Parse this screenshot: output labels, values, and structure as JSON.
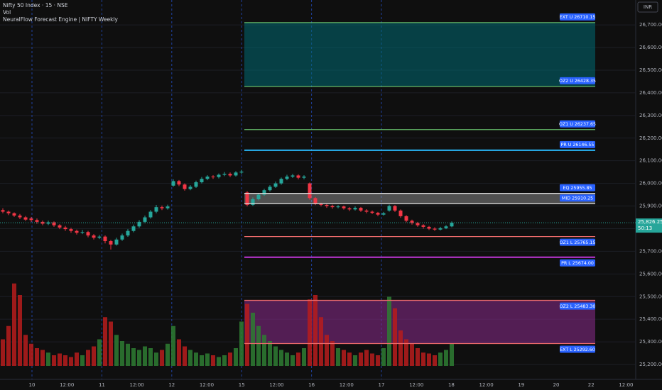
{
  "header": {
    "symbol": "Nifty 50 Index · 15 · NSE",
    "volume": "Vol",
    "indicator": "NeuralFlow Forecast Engine | NIFTY Weekly"
  },
  "currency": "INR",
  "chart_data": {
    "type": "candlestick",
    "up_color": "#26a69a",
    "down_color": "#f23645",
    "volume_up_color": "#2e7d32",
    "volume_down_color": "#b71c1c",
    "ylim": [
      25150,
      26810
    ],
    "yticks": [
      {
        "value": 25200,
        "label": "25,200.00"
      },
      {
        "value": 25300,
        "label": "25,300.00"
      },
      {
        "value": 25400,
        "label": "25,400.00"
      },
      {
        "value": 25500,
        "label": "25,500.00"
      },
      {
        "value": 25600,
        "label": "25,600.00"
      },
      {
        "value": 25700,
        "label": "25,700.00"
      },
      {
        "value": 25800,
        "label": "25,800.00"
      },
      {
        "value": 25900,
        "label": "25,900.00"
      },
      {
        "value": 26000,
        "label": "26,000.00"
      },
      {
        "value": 26100,
        "label": "26,100.00"
      },
      {
        "value": 26200,
        "label": "26,200.00"
      },
      {
        "value": 26300,
        "label": "26,300.00"
      },
      {
        "value": 26400,
        "label": "26,400.00"
      },
      {
        "value": 26500,
        "label": "26,500.00"
      },
      {
        "value": 26600,
        "label": "26,600.00"
      },
      {
        "value": 26700,
        "label": "26,700.00"
      }
    ],
    "x_labels": [
      "10",
      "12:00",
      "11",
      "12:00",
      "12",
      "12:00",
      "15",
      "12:00",
      "16",
      "12:00",
      "17",
      "12:00",
      "18",
      "12:00",
      "19",
      "20",
      "22",
      "12:00"
    ],
    "candles": [
      [
        25882,
        25890,
        25868,
        25875
      ],
      [
        25875,
        25880,
        25860,
        25868
      ],
      [
        25868,
        25872,
        25852,
        25858
      ],
      [
        25858,
        25865,
        25842,
        25850
      ],
      [
        25850,
        25856,
        25834,
        25840
      ],
      [
        25845,
        25852,
        25830,
        25838
      ],
      [
        25838,
        25845,
        25822,
        25830
      ],
      [
        25830,
        25836,
        25815,
        25822
      ],
      [
        25822,
        25835,
        25816,
        25828
      ],
      [
        25828,
        25832,
        25808,
        25815
      ],
      [
        25815,
        25820,
        25798,
        25805
      ],
      [
        25805,
        25812,
        25790,
        25798
      ],
      [
        25798,
        25804,
        25782,
        25790
      ],
      [
        25790,
        25796,
        25774,
        25782
      ],
      [
        25782,
        25794,
        25776,
        25785
      ],
      [
        25785,
        25790,
        25762,
        25770
      ],
      [
        25770,
        25776,
        25752,
        25760
      ],
      [
        25760,
        25772,
        25754,
        25765
      ],
      [
        25765,
        25770,
        25735,
        25745
      ],
      [
        25745,
        25750,
        25708,
        25730
      ],
      [
        25730,
        25760,
        25725,
        25752
      ],
      [
        25752,
        25778,
        25746,
        25770
      ],
      [
        25770,
        25798,
        25764,
        25790
      ],
      [
        25790,
        25818,
        25784,
        25810
      ],
      [
        25810,
        25838,
        25804,
        25830
      ],
      [
        25830,
        25858,
        25824,
        25850
      ],
      [
        25850,
        25882,
        25844,
        25875
      ],
      [
        25875,
        25905,
        25868,
        25895
      ],
      [
        25895,
        25902,
        25882,
        25890
      ],
      [
        25890,
        25906,
        25884,
        25898
      ],
      [
        25990,
        26018,
        25985,
        26010
      ],
      [
        26010,
        26015,
        25988,
        25995
      ],
      [
        25995,
        26000,
        25968,
        25975
      ],
      [
        25975,
        25992,
        25970,
        25985
      ],
      [
        25985,
        26012,
        25980,
        26005
      ],
      [
        26005,
        26028,
        26000,
        26020
      ],
      [
        26020,
        26036,
        26014,
        26030
      ],
      [
        26030,
        26036,
        26020,
        26028
      ],
      [
        26028,
        26044,
        26022,
        26038
      ],
      [
        26038,
        26050,
        26032,
        26042
      ],
      [
        26042,
        26048,
        26028,
        26035
      ],
      [
        26035,
        26054,
        26030,
        26048
      ],
      [
        26048,
        26060,
        26042,
        26052
      ],
      [
        25960,
        25965,
        25898,
        25905
      ],
      [
        25905,
        25938,
        25900,
        25930
      ],
      [
        25930,
        25956,
        25925,
        25950
      ],
      [
        25950,
        25976,
        25945,
        25970
      ],
      [
        25970,
        25992,
        25964,
        25985
      ],
      [
        25985,
        26008,
        25980,
        26000
      ],
      [
        26000,
        26026,
        25994,
        26020
      ],
      [
        26020,
        26038,
        26014,
        26030
      ],
      [
        26030,
        26042,
        26024,
        26035
      ],
      [
        26035,
        26040,
        26018,
        26025
      ],
      [
        26025,
        26036,
        26018,
        26030
      ],
      [
        26000,
        26004,
        25928,
        25935
      ],
      [
        25935,
        25940,
        25904,
        25910
      ],
      [
        25910,
        25915,
        25898,
        25905
      ],
      [
        25905,
        25910,
        25892,
        25900
      ],
      [
        25900,
        25906,
        25888,
        25895
      ],
      [
        25895,
        25904,
        25890,
        25898
      ],
      [
        25898,
        25902,
        25884,
        25890
      ],
      [
        25890,
        25895,
        25878,
        25885
      ],
      [
        25885,
        25898,
        25880,
        25892
      ],
      [
        25892,
        25896,
        25874,
        25880
      ],
      [
        25880,
        25886,
        25868,
        25875
      ],
      [
        25875,
        25880,
        25864,
        25870
      ],
      [
        25870,
        25874,
        25855,
        25862
      ],
      [
        25862,
        25874,
        25858,
        25868
      ],
      [
        25880,
        25906,
        25875,
        25900
      ],
      [
        25900,
        25904,
        25874,
        25880
      ],
      [
        25880,
        25885,
        25848,
        25855
      ],
      [
        25855,
        25860,
        25828,
        25835
      ],
      [
        25835,
        25840,
        25818,
        25825
      ],
      [
        25825,
        25830,
        25808,
        25815
      ],
      [
        25815,
        25820,
        25800,
        25808
      ],
      [
        25808,
        25812,
        25794,
        25800
      ],
      [
        25800,
        25806,
        25790,
        25796
      ],
      [
        25796,
        25808,
        25792,
        25802
      ],
      [
        25802,
        25816,
        25798,
        25810
      ],
      [
        25810,
        25832,
        25806,
        25826
      ]
    ],
    "volumes": [
      30,
      45,
      93,
      80,
      35,
      25,
      20,
      18,
      15,
      12,
      14,
      12,
      10,
      15,
      12,
      18,
      22,
      30,
      55,
      50,
      35,
      28,
      25,
      20,
      18,
      22,
      20,
      15,
      18,
      25,
      45,
      30,
      22,
      18,
      15,
      12,
      14,
      12,
      10,
      12,
      15,
      20,
      50,
      70,
      60,
      45,
      35,
      28,
      22,
      18,
      15,
      12,
      15,
      20,
      75,
      80,
      55,
      35,
      28,
      20,
      18,
      15,
      12,
      15,
      18,
      14,
      12,
      20,
      78,
      65,
      40,
      30,
      25,
      20,
      15,
      14,
      12,
      15,
      18,
      25
    ],
    "volume_ylim": [
      0,
      120
    ],
    "levels": [
      {
        "label": "EXT U 26710.15",
        "value": 26710.15,
        "color": "#66bb6a",
        "fill": "rgba(0,105,115,0.55)"
      },
      {
        "label": "OZ2 U 26428.35",
        "value": 26428.35,
        "color": "#66bb6a"
      },
      {
        "label": "OZ1 U 26237.65",
        "value": 26237.65,
        "color": "#66bb6a"
      },
      {
        "label": "PR U 26146.55",
        "value": 26146.55,
        "color": "#29b6f6"
      },
      {
        "label": "EQ 25955.85",
        "value": 25955.85,
        "color": "#e0e0e0",
        "fill": "rgba(160,160,160,0.45)"
      },
      {
        "label": "MID 25910.25",
        "value": 25910.25,
        "color": "#e0e0e0"
      },
      {
        "label": "OZ1 L 25765.15",
        "value": 25765.15,
        "color": "#ef6c6c"
      },
      {
        "label": "PR L 25674.00",
        "value": 25674.0,
        "color": "#c036d8"
      },
      {
        "label": "OZ2 L 25483.30",
        "value": 25483.3,
        "color": "#ef6c6c",
        "fill": "rgba(128,40,130,0.6)"
      },
      {
        "label": "EXT L 25292.60",
        "value": 25292.6,
        "color": "#ef6c6c"
      }
    ],
    "current_price": {
      "value": 25826.25,
      "label": "25,826.25",
      "countdown": "50:13"
    }
  }
}
